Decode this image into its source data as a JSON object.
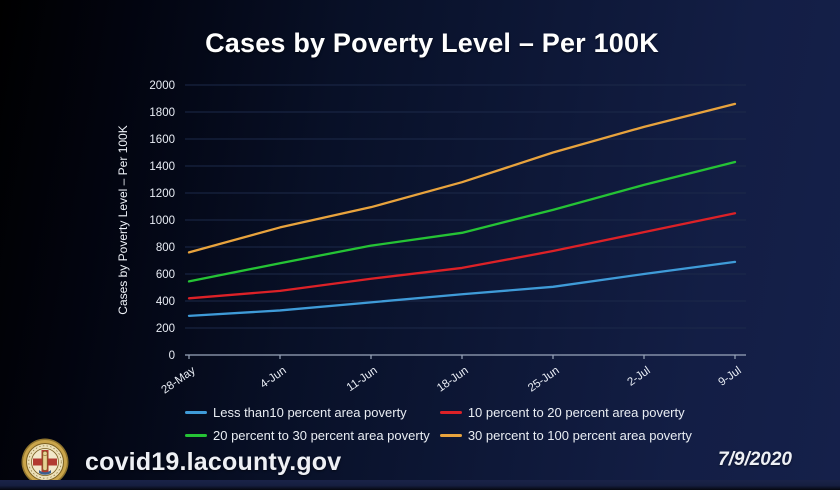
{
  "chart_data": {
    "type": "line",
    "title": "Cases by Poverty Level – Per 100K",
    "xlabel": "",
    "ylabel": "Cases by Poverty Level – Per 100K",
    "categories": [
      "28-May",
      "4-Jun",
      "11-Jun",
      "18-Jun",
      "25-Jun",
      "2-Jul",
      "9-Jul"
    ],
    "ylim": [
      0,
      2000
    ],
    "ytick_step": 200,
    "grid": true,
    "legend_position": "bottom",
    "axis_color": "#9aa6bb",
    "grid_color": "#1c2949",
    "tick_label_color": "#e9edf5",
    "series": [
      {
        "name": "Less than10 percent area poverty",
        "color": "#3f9bd8",
        "values": [
          290,
          330,
          390,
          450,
          505,
          600,
          690
        ]
      },
      {
        "name": "10 percent to 20 percent area poverty",
        "color": "#dc2127",
        "values": [
          420,
          475,
          565,
          645,
          770,
          910,
          1050
        ]
      },
      {
        "name": "20 percent to 30 percent area poverty",
        "color": "#25c335",
        "values": [
          545,
          680,
          810,
          905,
          1075,
          1260,
          1430
        ]
      },
      {
        "name": "30 percent to 100 percent area poverty",
        "color": "#e8a33d",
        "values": [
          760,
          945,
          1095,
          1280,
          1500,
          1690,
          1860
        ]
      }
    ]
  },
  "footer": {
    "website": "covid19.lacounty.gov",
    "date": "7/9/2020",
    "seal": "los-angeles-county-seal"
  }
}
